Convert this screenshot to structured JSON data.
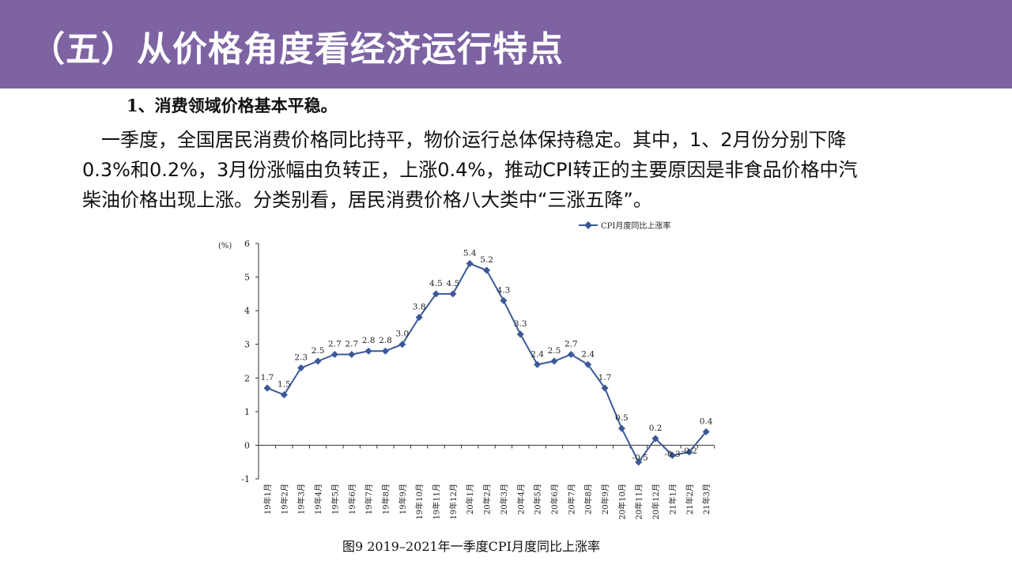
{
  "header": {
    "title": "（五）从价格角度看经济运行特点",
    "background_color": "#7e63a3"
  },
  "content": {
    "subheading": "1、消费领域价格基本平稳。",
    "paragraph": "一季度，全国居民消费价格同比持平，物价运行总体保持稳定。其中，1、2月份分别下降0.3%和0.2%，3月份涨幅由负转正，上涨0.4%，推动CPI转正的主要原因是非食品价格中汽柴油价格出现上涨。分类别看，居民消费价格八大类中“三涨五降”。"
  },
  "chart_data": {
    "type": "line",
    "title": "",
    "caption": "图9 2019–2021年一季度CPI月度同比上涨率",
    "ylabel": "(%)",
    "xlabel": "",
    "ylim": [
      -1,
      6
    ],
    "yticks": [
      "6",
      "5",
      "4",
      "3",
      "2",
      "1",
      "0",
      "-1"
    ],
    "grid": false,
    "legend_position": "top-right",
    "categories": [
      "19年1月",
      "19年2月",
      "19年3月",
      "19年4月",
      "19年5月",
      "19年6月",
      "19年7月",
      "19年8月",
      "19年9月",
      "19年10月",
      "19年11月",
      "19年12月",
      "20年1月",
      "20年2月",
      "20年3月",
      "20年4月",
      "20年5月",
      "20年6月",
      "20年7月",
      "20年8月",
      "20年9月",
      "20年10月",
      "20年11月",
      "20年12月",
      "21年1月",
      "21年2月",
      "21年3月"
    ],
    "series": [
      {
        "name": "CPI月度同比上涨率",
        "color": "#3b5998",
        "values": [
          1.7,
          1.5,
          2.3,
          2.5,
          2.7,
          2.7,
          2.8,
          2.8,
          3.0,
          3.8,
          4.5,
          4.5,
          5.4,
          5.2,
          4.3,
          3.3,
          2.4,
          2.5,
          2.7,
          2.4,
          1.7,
          0.5,
          -0.5,
          0.2,
          -0.3,
          -0.2,
          0.4
        ],
        "labels": [
          "1.7",
          "1.5",
          "2.3",
          "2.5",
          "2.7",
          "2.7",
          "2.8",
          "2.8",
          "3.0",
          "3.8",
          "4.5",
          "4.5",
          "5.4",
          "5.2",
          "4.3",
          "3.3",
          "2.4",
          "2.5",
          "2.7",
          "2.4",
          "1.7",
          "0.5",
          "-0.5",
          "0.2",
          "-0.3",
          "-0.2",
          "0.4"
        ]
      }
    ]
  }
}
